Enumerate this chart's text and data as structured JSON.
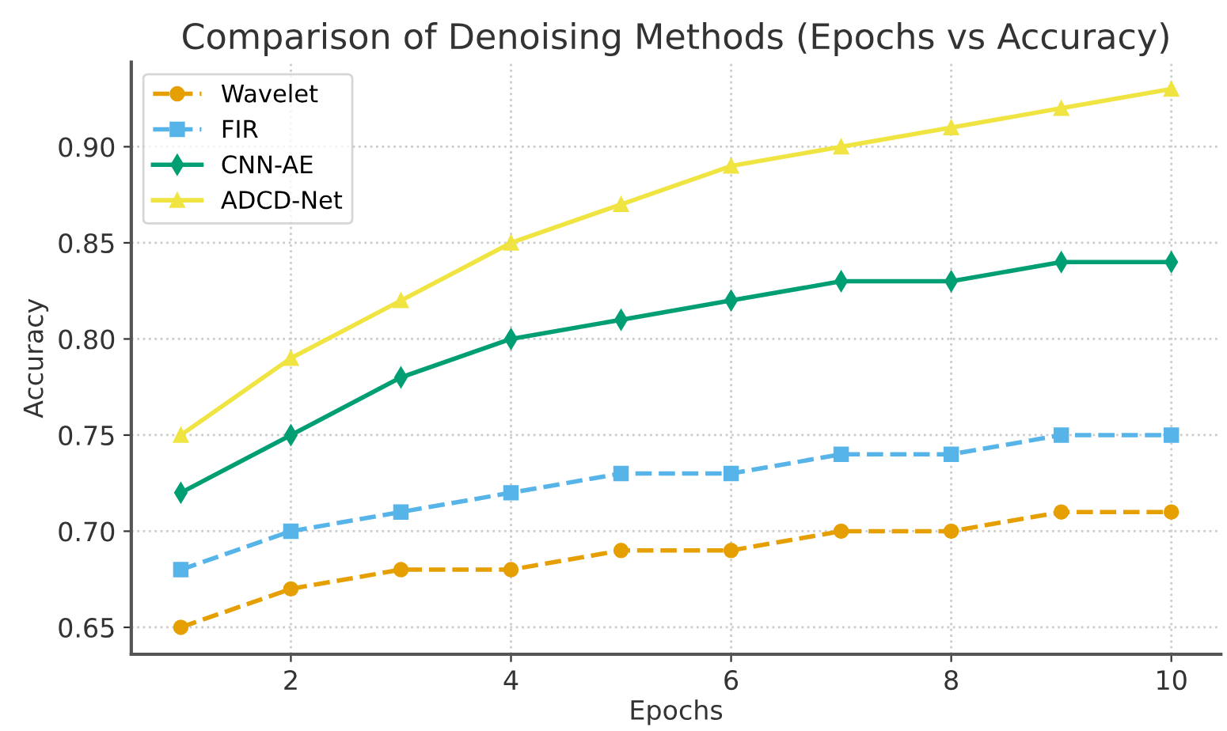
{
  "chart_data": {
    "type": "line",
    "title": "Comparison of Denoising Methods (Epochs vs Accuracy)",
    "xlabel": "Epochs",
    "ylabel": "Accuracy",
    "x": [
      1,
      2,
      3,
      4,
      5,
      6,
      7,
      8,
      9,
      10
    ],
    "series": [
      {
        "name": "Wavelet",
        "color": "#e69f00",
        "marker": "circle",
        "line_style": "dashed",
        "values": [
          0.65,
          0.67,
          0.68,
          0.68,
          0.69,
          0.69,
          0.7,
          0.7,
          0.71,
          0.71
        ]
      },
      {
        "name": "FIR",
        "color": "#56b4e9",
        "marker": "square",
        "line_style": "dashed",
        "values": [
          0.68,
          0.7,
          0.71,
          0.72,
          0.73,
          0.73,
          0.74,
          0.74,
          0.75,
          0.75
        ]
      },
      {
        "name": "CNN-AE",
        "color": "#009e73",
        "marker": "diamond",
        "line_style": "solid",
        "values": [
          0.72,
          0.75,
          0.78,
          0.8,
          0.81,
          0.82,
          0.83,
          0.83,
          0.84,
          0.84
        ]
      },
      {
        "name": "ADCD-Net",
        "color": "#f0e442",
        "marker": "triangle",
        "line_style": "solid",
        "values": [
          0.75,
          0.79,
          0.82,
          0.85,
          0.87,
          0.89,
          0.9,
          0.91,
          0.92,
          0.93
        ]
      }
    ],
    "xlim": [
      0.55,
      10.45
    ],
    "xticks": [
      2,
      4,
      6,
      8,
      10
    ],
    "ylim": [
      0.636,
      0.944
    ],
    "yticks": [
      {
        "value": 0.65,
        "label": "0.65"
      },
      {
        "value": 0.7,
        "label": "0.70"
      },
      {
        "value": 0.75,
        "label": "0.75"
      },
      {
        "value": 0.8,
        "label": "0.80"
      },
      {
        "value": 0.85,
        "label": "0.85"
      },
      {
        "value": 0.9,
        "label": "0.90"
      }
    ],
    "grid": true,
    "legend": "top left"
  }
}
